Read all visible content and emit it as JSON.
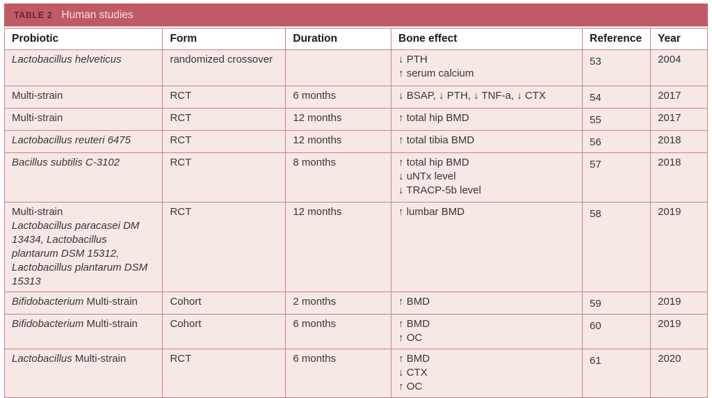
{
  "title": {
    "label": "TABLE 2",
    "text": "Human studies"
  },
  "colors": {
    "title_bar_bg": "#c05a66",
    "title_label": "#6f2430",
    "title_text": "#f3dedb",
    "header_bg": "#ffffff",
    "header_text": "#1d191a",
    "row_bg": "#f6e8e5",
    "border": "#c8818a",
    "text": "#3a3536"
  },
  "table": {
    "columns": [
      "Probiotic",
      "Form",
      "Duration",
      "Bone effect",
      "Reference",
      "Year"
    ],
    "rows": [
      {
        "probiotic": [
          [
            {
              "t": "Lactobacillus helveticus",
              "i": true
            }
          ]
        ],
        "form": "randomized crossover",
        "duration": "",
        "bone_effect": [
          "↓ PTH",
          "↑ serum calcium"
        ],
        "reference": "53",
        "year": "2004"
      },
      {
        "probiotic": [
          [
            {
              "t": "Multi-strain",
              "i": false
            }
          ]
        ],
        "form": "RCT",
        "duration": "6 months",
        "bone_effect": [
          "↓ BSAP, ↓ PTH, ↓ TNF-a, ↓ CTX"
        ],
        "reference": "54",
        "year": "2017"
      },
      {
        "probiotic": [
          [
            {
              "t": "Multi-strain",
              "i": false
            }
          ]
        ],
        "form": "RCT",
        "duration": "12 months",
        "bone_effect": [
          "↑ total hip BMD"
        ],
        "reference": "55",
        "year": "2017"
      },
      {
        "probiotic": [
          [
            {
              "t": "Lactobacillus reuteri 6475",
              "i": true
            }
          ]
        ],
        "form": "RCT",
        "duration": "12 months",
        "bone_effect": [
          "↑ total tibia BMD"
        ],
        "reference": "56",
        "year": "2018"
      },
      {
        "probiotic": [
          [
            {
              "t": "Bacillus subtilis C-3102",
              "i": true
            }
          ]
        ],
        "form": "RCT",
        "duration": "8 months",
        "bone_effect": [
          "↑ total hip BMD",
          "↓ uNTx level",
          "↓ TRACP-5b level"
        ],
        "reference": "57",
        "year": "2018"
      },
      {
        "probiotic": [
          [
            {
              "t": "Multi-strain",
              "i": false
            }
          ],
          [
            {
              "t": "Lactobacillus paracasei DM 13434, Lactobacillus plantarum DSM 15312, Lactobacillus plantarum DSM 15313",
              "i": true
            }
          ]
        ],
        "form": "RCT",
        "duration": "12 months",
        "bone_effect": [
          "↑ lumbar BMD"
        ],
        "reference": "58",
        "year": "2019"
      },
      {
        "probiotic": [
          [
            {
              "t": "Bifidobacterium",
              "i": true
            },
            {
              "t": " Multi-strain",
              "i": false
            }
          ]
        ],
        "form": "Cohort",
        "duration": "2 months",
        "bone_effect": [
          "↑ BMD"
        ],
        "reference": "59",
        "year": "2019"
      },
      {
        "probiotic": [
          [
            {
              "t": "Bifidobacterium",
              "i": true
            },
            {
              "t": " Multi-strain",
              "i": false
            }
          ]
        ],
        "form": "Cohort",
        "duration": "6 months",
        "bone_effect": [
          "↑ BMD",
          "↑ OC"
        ],
        "reference": "60",
        "year": "2019"
      },
      {
        "probiotic": [
          [
            {
              "t": "Lactobacillus",
              "i": true
            },
            {
              "t": " Multi-strain",
              "i": false
            }
          ]
        ],
        "form": "RCT",
        "duration": "6 months",
        "bone_effect": [
          "↑ BMD",
          "↓ CTX",
          "↑ OC"
        ],
        "reference": "61",
        "year": "2020"
      }
    ]
  }
}
